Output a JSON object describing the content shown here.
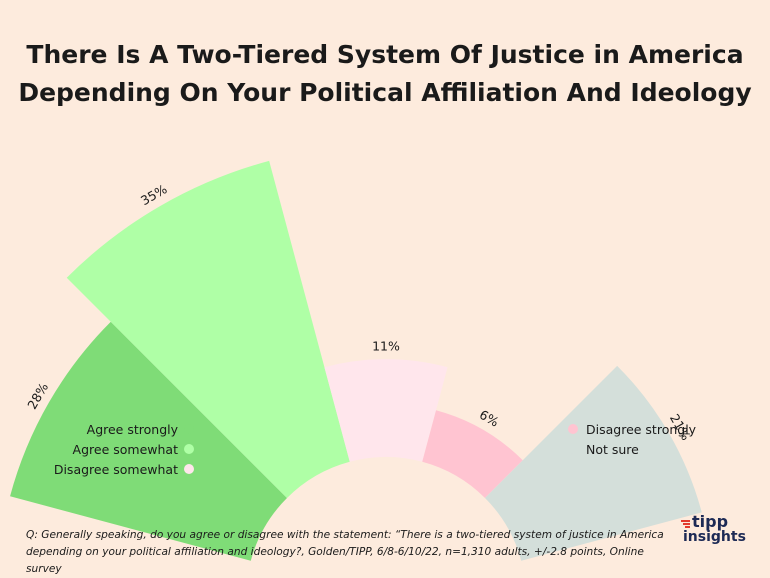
{
  "title_line1": "There Is A Two-Tiered System Of Justice in America",
  "title_line2": "Depending On Your Political Affiliation And Ideology",
  "chart_data": {
    "type": "polar-bar",
    "categories": [
      "Agree strongly",
      "Agree somewhat",
      "Disagree somewhat",
      "Disagree strongly",
      "Not sure"
    ],
    "values": [
      28,
      35,
      11,
      6,
      21
    ],
    "data_labels": [
      "28%",
      "35%",
      "11%",
      "6%",
      "21%"
    ],
    "colors": [
      "#7fdc77",
      "#afffa6",
      "#ffe6ec",
      "#ffc4d1",
      "#d4dfda"
    ],
    "title": "There Is A Two-Tiered System Of Justice in America Depending On Your Political Affiliation And Ideology"
  },
  "legend_left": [
    {
      "label": "Agree strongly",
      "color": "#7fdc77"
    },
    {
      "label": "Agree somewhat",
      "color": "#afffa6"
    },
    {
      "label": "Disagree somewhat",
      "color": "#ffe6ec"
    }
  ],
  "legend_right": [
    {
      "label": "Disagree strongly",
      "color": "#ffc4d1"
    },
    {
      "label": "Not sure",
      "color": "#d4dfda"
    }
  ],
  "footnote_line1": "Q: Generally speaking, do you agree or disagree with the statement: “There is a two-tiered system of  justice in America",
  "footnote_line2": "depending on your political affiliation and ideology?, Golden/TIPP, 6/8-6/10/22, n=1,310 adults, +/-2.8 points, Online survey",
  "logo": {
    "word1": "tipp",
    "word2": "insights"
  }
}
